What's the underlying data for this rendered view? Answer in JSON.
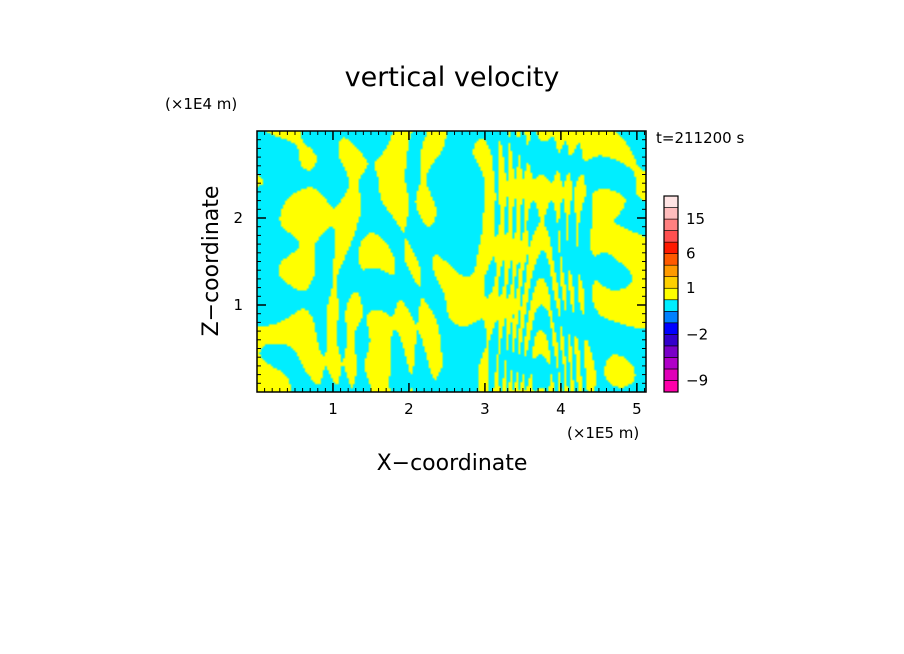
{
  "chart_data": {
    "type": "heatmap",
    "title": "vertical velocity",
    "xlabel": "X−coordinate",
    "ylabel": "Z−coordinate",
    "x_scale_label": "(×1E5 m)",
    "y_scale_label": "(×1E4 m)",
    "time_label": "t=211200 s",
    "xlim": [
      0,
      5.12
    ],
    "ylim": [
      0,
      3.0
    ],
    "x_ticks": [
      1,
      2,
      3,
      4,
      5
    ],
    "y_ticks": [
      1,
      2
    ],
    "x_tick_labels": [
      "1",
      "2",
      "3",
      "4",
      "5"
    ],
    "y_tick_labels": [
      "1",
      "2"
    ],
    "field_colors": {
      "positive": "#ffff00",
      "negative": "#00eeff"
    },
    "colorbar": {
      "range": [
        -12,
        24
      ],
      "levels": [
        -12,
        -9,
        -6,
        -4,
        -3,
        -2,
        -1,
        0,
        0.5,
        1,
        2,
        3,
        6,
        9,
        12,
        15,
        18,
        24
      ],
      "colors": [
        "#ff00aa",
        "#e000b8",
        "#b000c8",
        "#7a00c8",
        "#3300cc",
        "#0000ff",
        "#0080ff",
        "#00eeff",
        "#ffff00",
        "#ffd000",
        "#ff9a00",
        "#ff5a00",
        "#ff1a00",
        "#ff5050",
        "#ff8080",
        "#ffbcbc",
        "#ffe4e4"
      ],
      "labels": [
        {
          "value": -9,
          "text": "−9"
        },
        {
          "value": -2,
          "text": "−2"
        },
        {
          "value": 1,
          "text": "1"
        },
        {
          "value": 6,
          "text": "6"
        },
        {
          "value": 15,
          "text": "15"
        }
      ]
    }
  }
}
